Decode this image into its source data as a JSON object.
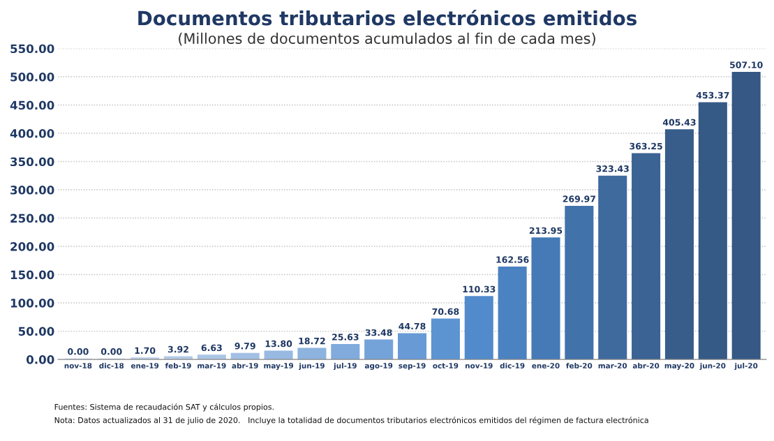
{
  "chart_data": {
    "type": "bar",
    "title": "Documentos tributarios electrónicos emitidos",
    "subtitle": "(Millones de documentos acumulados al fin de cada mes)",
    "categories": [
      "nov-18",
      "dic-18",
      "ene-19",
      "feb-19",
      "mar-19",
      "abr-19",
      "may-19",
      "jun-19",
      "jul-19",
      "ago-19",
      "sep-19",
      "oct-19",
      "nov-19",
      "dic-19",
      "ene-20",
      "feb-20",
      "mar-20",
      "abr-20",
      "may-20",
      "jun-20",
      "jul-20"
    ],
    "values": [
      0,
      0,
      1.7,
      3.92,
      6.63,
      9.79,
      13.8,
      18.72,
      25.63,
      33.48,
      44.78,
      70.68,
      110.33,
      162.56,
      213.95,
      269.97,
      323.43,
      363.25,
      405.43,
      453.37,
      507.1
    ],
    "value_labels": [
      "0.00",
      "0.00",
      "1.70",
      "3.92",
      "6.63",
      "9.79",
      "13.80",
      "18.72",
      "25.63",
      "33.48",
      "44.78",
      "70.68",
      "110.33",
      "162.56",
      "213.95",
      "269.97",
      "323.43",
      "363.25",
      "405.43",
      "453.37",
      "507.10"
    ],
    "colors": [
      "#c3d3e6",
      "#bfd0e5",
      "#b9cde6",
      "#b3cae6",
      "#abc5e5",
      "#a2c0e4",
      "#98bae2",
      "#8db3df",
      "#81abdc",
      "#74a3d9",
      "#689bd6",
      "#5c94d2",
      "#528bcb",
      "#4b82c1",
      "#457ab6",
      "#4172aa",
      "#3e6a9e",
      "#3b6393",
      "#385d8a",
      "#365a86",
      "#355884"
    ],
    "ylim": [
      0,
      550
    ],
    "yticks": [
      {
        "value": 0,
        "label": "0.00"
      },
      {
        "value": 50,
        "label": "50.00"
      },
      {
        "value": 100,
        "label": "100.00"
      },
      {
        "value": 150,
        "label": "150.00"
      },
      {
        "value": 200,
        "label": "200.00"
      },
      {
        "value": 250,
        "label": "250.00"
      },
      {
        "value": 300,
        "label": "300.00"
      },
      {
        "value": 350,
        "label": "350.00"
      },
      {
        "value": 400,
        "label": "400.00"
      },
      {
        "value": 450,
        "label": "450.00"
      },
      {
        "value": 500,
        "label": "500.00"
      },
      {
        "value": 550,
        "label": "550.00"
      }
    ],
    "grid": "y",
    "annotations": [
      "Fuentes: Sistema de recaudación SAT y cálculos propios.",
      "Nota: Datos actualizados al 31 de julio de 2020.   Incluye la totalidad de documentos tributarios electrónicos emitidos del régimen de factura electrónica"
    ]
  }
}
